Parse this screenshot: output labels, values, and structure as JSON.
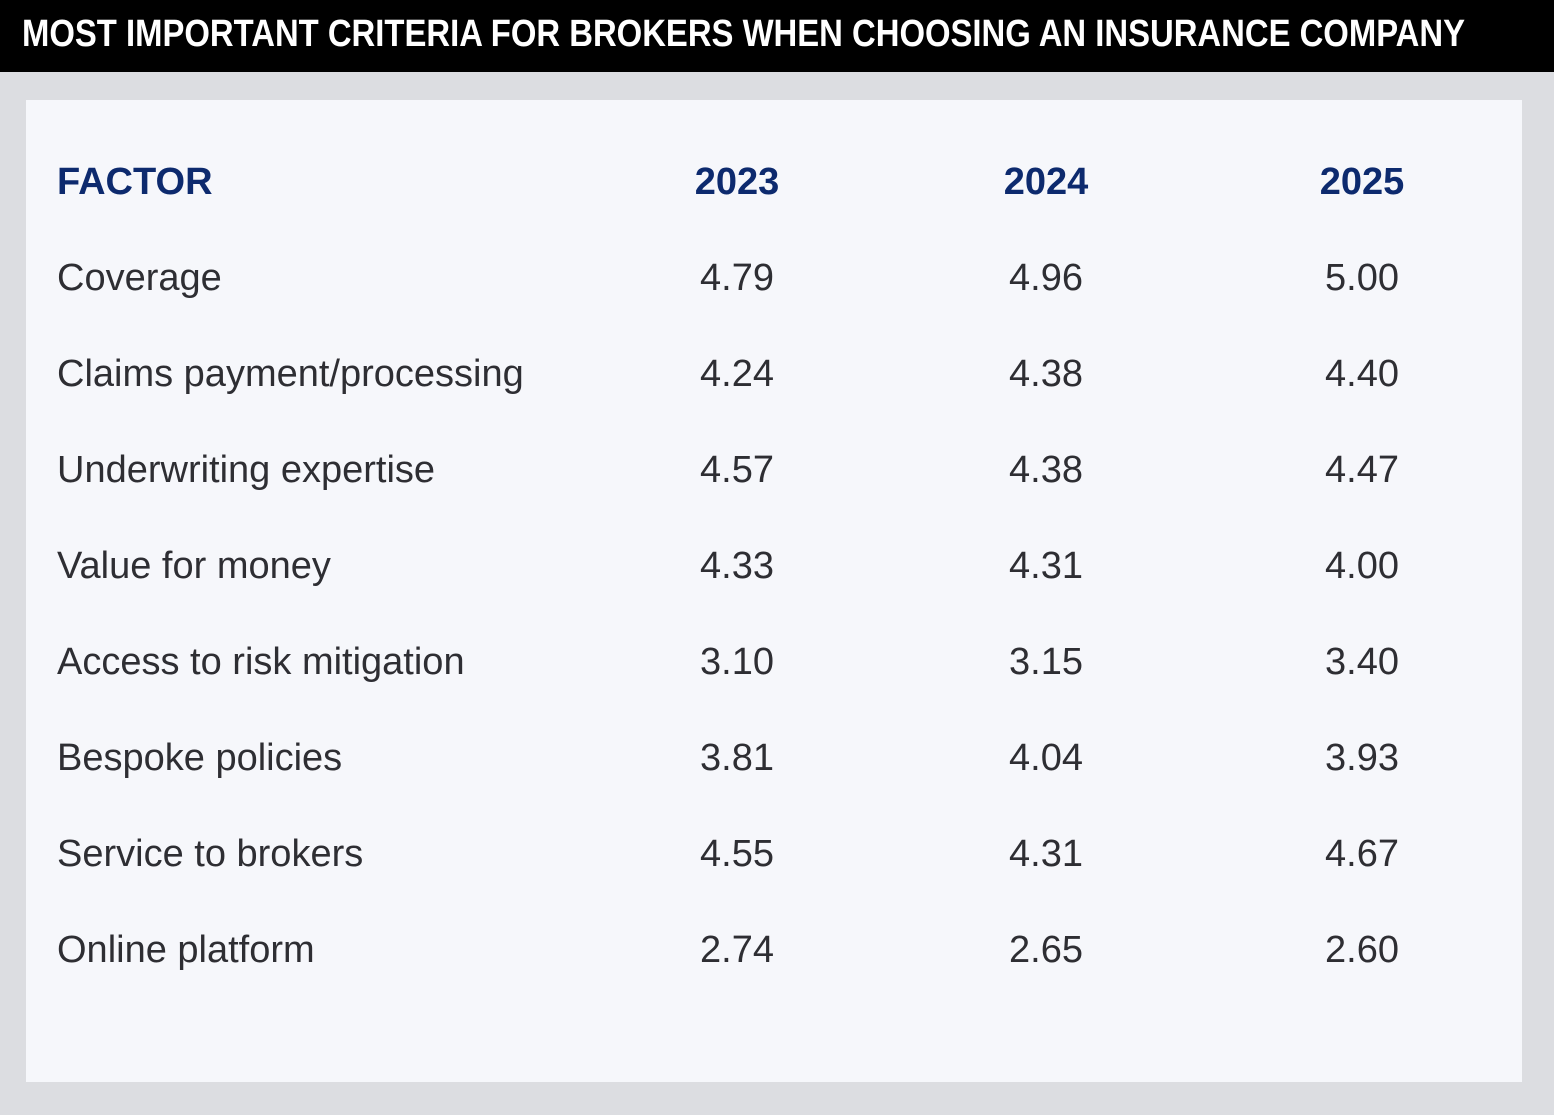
{
  "header": {
    "title": "MOST IMPORTANT CRITERIA FOR BROKERS WHEN CHOOSING AN INSURANCE COMPANY"
  },
  "table": {
    "columns": [
      "FACTOR",
      "2023",
      "2024",
      "2025"
    ],
    "rows": [
      [
        "Coverage",
        "4.79",
        "4.96",
        "5.00"
      ],
      [
        "Claims payment/processing",
        "4.24",
        "4.38",
        "4.40"
      ],
      [
        "Underwriting expertise",
        "4.57",
        "4.38",
        "4.47"
      ],
      [
        "Value for money",
        "4.33",
        "4.31",
        "4.00"
      ],
      [
        "Access to risk mitigation",
        "3.10",
        "3.15",
        "3.40"
      ],
      [
        "Bespoke policies",
        "3.81",
        "4.04",
        "3.93"
      ],
      [
        "Service to brokers",
        "4.55",
        "4.31",
        "4.67"
      ],
      [
        "Online platform",
        "2.74",
        "2.65",
        "2.60"
      ]
    ]
  }
}
